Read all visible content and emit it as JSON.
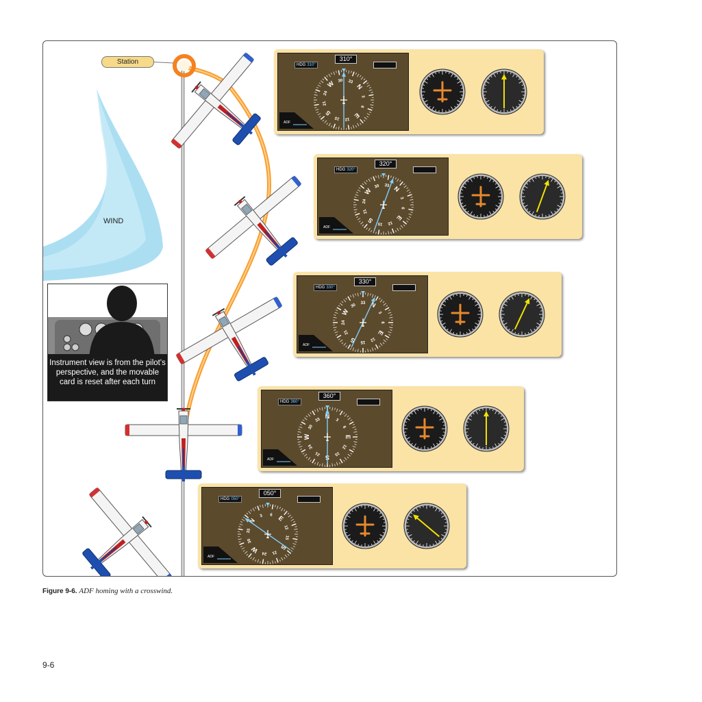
{
  "figure": {
    "station_label": "Station",
    "wind_label": "WIND",
    "pilot_note": "Instrument view is from the pilot's perspective, and the movable card is reset after each turn",
    "colors": {
      "panel": "#fbe3a6",
      "screen": "#5c4a2c",
      "station_ring": "#f58220",
      "ground_track": "#f7941d",
      "wind": "#9ed8f0",
      "needle_adf": "#7fd0ff",
      "needle_rmi": "#f2e200"
    },
    "panels": [
      {
        "hdg_small": "HDG",
        "hdg_small_value": "310°",
        "hdg_big": "310°",
        "adf_label": "ADF",
        "card_heading": 310,
        "needle_bearing": 0,
        "rmi_bearing": 0
      },
      {
        "hdg_small": "HDG",
        "hdg_small_value": "320°",
        "hdg_big": "320°",
        "adf_label": "ADF",
        "card_heading": 320,
        "needle_bearing": 20,
        "rmi_bearing": 20
      },
      {
        "hdg_small": "HDG",
        "hdg_small_value": "330°",
        "hdg_big": "330°",
        "adf_label": "ADF",
        "card_heading": 330,
        "needle_bearing": 25,
        "rmi_bearing": 25
      },
      {
        "hdg_small": "HDG",
        "hdg_small_value": "360°",
        "hdg_big": "360°",
        "adf_label": "ADF",
        "card_heading": 360,
        "needle_bearing": 0,
        "rmi_bearing": 0
      },
      {
        "hdg_small": "HDG",
        "hdg_small_value": "050°",
        "hdg_big": "050°",
        "adf_label": "ADF",
        "card_heading": 50,
        "needle_bearing": -55,
        "rmi_bearing": -50
      }
    ],
    "caption_bold": "Figure 9-6.",
    "caption_text": "ADF homing with a crosswind."
  },
  "page_number": "9-6"
}
